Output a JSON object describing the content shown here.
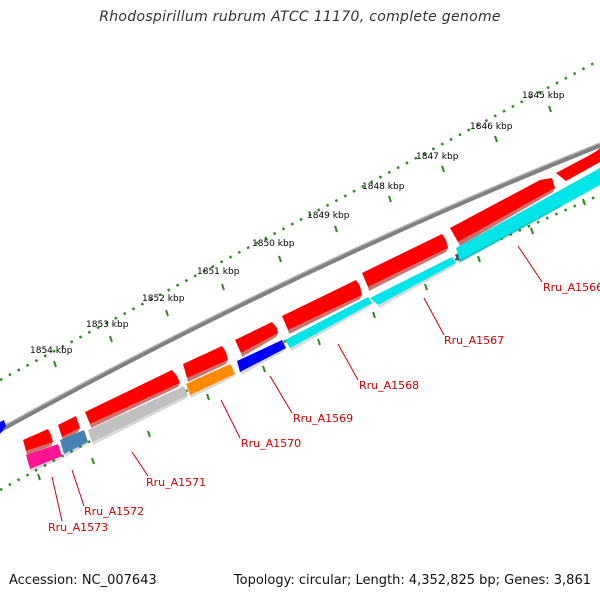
{
  "title": "Rhodospirillum rubrum ATCC 11170, complete genome",
  "footer": {
    "accession": "Accession: NC_007643",
    "summary": "Topology: circular; Length: 4,352,825 bp; Genes: 3,861"
  },
  "scale_labels": [
    "1845 kbp",
    "1846 kbp",
    "1847 kbp",
    "1848 kbp",
    "1849 kbp",
    "1850 kbp",
    "1851 kbp",
    "1852 kbp",
    "1853 kbp",
    "1854 kbp"
  ],
  "gene_labels": [
    "Rru_A1566",
    "Rru_A1567",
    "Rru_A1568",
    "Rru_A1569",
    "Rru_A1570",
    "Rru_A1571",
    "Rru_A1572",
    "Rru_A1573"
  ],
  "colors": {
    "backbone": "#808080",
    "scale_dots": "#2e8b22",
    "cds_forward": "#ff0000",
    "cyan": "#00e5e8",
    "dark_slate": "#483d8b",
    "blue": "#0000ff",
    "orange": "#ff8c00",
    "gray": "#c0c0c0",
    "steel_blue": "#4682b4",
    "magenta": "#ff1493",
    "label_red": "#cc0000"
  }
}
